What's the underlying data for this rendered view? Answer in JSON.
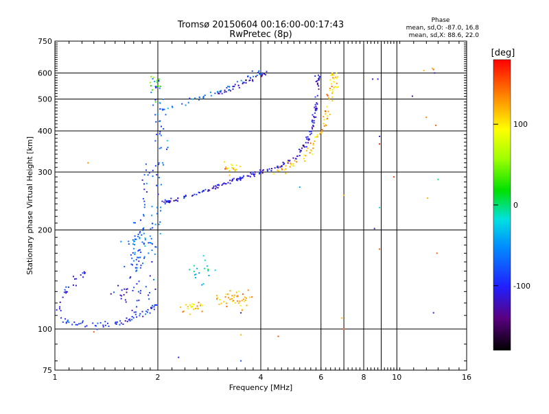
{
  "chart_data": {
    "type": "scatter",
    "title": "Tromsø 20150604 00:16:00-00:17:43",
    "subtitle": "RwPretec (8p)",
    "xlabel": "Frequency [MHz]",
    "ylabel": "Stationary phase Virtual Height [km]",
    "x_scale": "log",
    "y_scale": "log",
    "xlim": [
      1,
      16
    ],
    "ylim": [
      75,
      750
    ],
    "x_ticks": [
      {
        "value": 1,
        "label": "1"
      },
      {
        "value": 2,
        "label": "2"
      },
      {
        "value": 4,
        "label": "4"
      },
      {
        "value": 6,
        "label": "6"
      },
      {
        "value": 8,
        "label": "8"
      },
      {
        "value": 10,
        "label": "10"
      },
      {
        "value": 16,
        "label": "16"
      }
    ],
    "y_ticks": [
      {
        "value": 75,
        "label": "75"
      },
      {
        "value": 100,
        "label": "100"
      },
      {
        "value": 200,
        "label": "200"
      },
      {
        "value": 300,
        "label": "300"
      },
      {
        "value": 400,
        "label": "400"
      },
      {
        "value": 500,
        "label": "500"
      },
      {
        "value": 600,
        "label": "600"
      },
      {
        "value": 750,
        "label": "750"
      }
    ],
    "x_minor_grid": [
      7,
      9
    ],
    "grid": true,
    "phase_stats": {
      "header": "Phase",
      "line_o": "mean, sd,O: -87.0, 16.8",
      "line_x": "mean, sd,X:  88.6, 22.0"
    },
    "colorbar": {
      "label": "[deg]",
      "range": [
        -180,
        180
      ],
      "ticks": [
        {
          "value": 100,
          "label": "100"
        },
        {
          "value": 0,
          "label": "0"
        },
        {
          "value": -100,
          "label": "-100"
        }
      ],
      "colormap": "rainbow"
    },
    "traces": [
      {
        "kind": "curve",
        "phase": -95,
        "spread": 0.012,
        "count": 10,
        "points": [
          [
            1.05,
            107
          ],
          [
            1.15,
            104
          ],
          [
            1.3,
            102
          ],
          [
            1.45,
            103
          ],
          [
            1.6,
            106
          ],
          [
            1.75,
            110
          ],
          [
            1.9,
            114
          ],
          [
            2.0,
            120
          ]
        ]
      },
      {
        "kind": "curve",
        "phase": -100,
        "spread": 0.015,
        "count": 6,
        "points": [
          [
            1.02,
            112
          ],
          [
            1.05,
            125
          ],
          [
            1.1,
            135
          ],
          [
            1.18,
            145
          ],
          [
            1.23,
            150
          ]
        ]
      },
      {
        "kind": "curve",
        "phase": -90,
        "spread": 0.012,
        "count": 6,
        "points": [
          [
            1.72,
            112
          ],
          [
            1.75,
            130
          ],
          [
            1.78,
            160
          ],
          [
            1.8,
            200
          ],
          [
            1.82,
            240
          ],
          [
            1.83,
            280
          ],
          [
            1.86,
            320
          ]
        ]
      },
      {
        "kind": "curve",
        "phase": -80,
        "spread": 0.02,
        "count": 6,
        "points": [
          [
            1.9,
            115
          ],
          [
            1.92,
            140
          ],
          [
            1.95,
            180
          ],
          [
            1.97,
            240
          ],
          [
            1.98,
            300
          ],
          [
            1.99,
            380
          ],
          [
            2.0,
            450
          ],
          [
            1.97,
            520
          ],
          [
            1.95,
            570
          ]
        ]
      },
      {
        "kind": "curve",
        "phase": -60,
        "spread": 0.02,
        "count": 5,
        "points": [
          [
            2.0,
            180
          ],
          [
            2.02,
            220
          ],
          [
            2.05,
            300
          ],
          [
            2.05,
            380
          ],
          [
            2.03,
            440
          ],
          [
            2.05,
            540
          ]
        ]
      },
      {
        "kind": "curve",
        "phase": -108,
        "spread": 0.008,
        "count": 14,
        "points": [
          [
            2.0,
            240
          ],
          [
            2.2,
            245
          ],
          [
            2.5,
            255
          ],
          [
            2.8,
            265
          ],
          [
            3.1,
            275
          ],
          [
            3.4,
            285
          ],
          [
            3.7,
            293
          ],
          [
            4.0,
            300
          ],
          [
            4.5,
            310
          ],
          [
            5.0,
            330
          ],
          [
            5.4,
            360
          ],
          [
            5.6,
            400
          ],
          [
            5.75,
            450
          ],
          [
            5.85,
            520
          ],
          [
            5.9,
            600
          ]
        ]
      },
      {
        "kind": "curve",
        "phase": 115,
        "spread": 0.012,
        "count": 10,
        "points": [
          [
            4.3,
            300
          ],
          [
            4.8,
            310
          ],
          [
            5.3,
            330
          ],
          [
            5.7,
            360
          ],
          [
            6.0,
            400
          ],
          [
            6.2,
            440
          ],
          [
            6.35,
            490
          ],
          [
            6.45,
            540
          ],
          [
            6.5,
            600
          ]
        ]
      },
      {
        "kind": "curve",
        "phase": -70,
        "spread": 0.012,
        "count": 7,
        "points": [
          [
            2.0,
            460
          ],
          [
            2.3,
            480
          ],
          [
            2.6,
            500
          ],
          [
            2.9,
            520
          ],
          [
            3.2,
            545
          ],
          [
            3.5,
            565
          ],
          [
            3.8,
            590
          ],
          [
            4.0,
            610
          ]
        ]
      },
      {
        "kind": "curve",
        "phase": -125,
        "spread": 0.01,
        "count": 8,
        "points": [
          [
            3.0,
            520
          ],
          [
            3.3,
            540
          ],
          [
            3.6,
            560
          ],
          [
            3.9,
            580
          ],
          [
            4.1,
            600
          ]
        ]
      },
      {
        "kind": "cluster",
        "phase": 120,
        "center": [
          3.3,
          123
        ],
        "sx": 0.05,
        "sy": 0.03,
        "count": 45
      },
      {
        "kind": "cluster",
        "phase": 110,
        "center": [
          2.5,
          116
        ],
        "sx": 0.04,
        "sy": 0.02,
        "count": 25
      },
      {
        "kind": "cluster",
        "phase": 110,
        "center": [
          3.3,
          308
        ],
        "sx": 0.03,
        "sy": 0.02,
        "count": 18
      },
      {
        "kind": "cluster",
        "phase": -30,
        "center": [
          2.7,
          150
        ],
        "sx": 0.05,
        "sy": 0.05,
        "count": 18
      },
      {
        "kind": "cluster",
        "phase": -75,
        "center": [
          1.75,
          180
        ],
        "sx": 0.05,
        "sy": 0.1,
        "count": 60
      },
      {
        "kind": "cluster",
        "phase": 105,
        "center": [
          6.6,
          580
        ],
        "sx": 0.01,
        "sy": 0.03,
        "count": 14
      },
      {
        "kind": "cluster",
        "phase": -115,
        "center": [
          1.6,
          130
        ],
        "sx": 0.05,
        "sy": 0.05,
        "count": 20
      },
      {
        "kind": "cluster",
        "phase": 40,
        "center": [
          1.97,
          560
        ],
        "sx": 0.02,
        "sy": 0.05,
        "count": 12
      }
    ],
    "isolated_points": [
      {
        "x": 1.25,
        "y": 320,
        "phase": 130
      },
      {
        "x": 1.3,
        "y": 98,
        "phase": 150
      },
      {
        "x": 2.3,
        "y": 82,
        "phase": -100
      },
      {
        "x": 3.5,
        "y": 80,
        "phase": -80
      },
      {
        "x": 3.5,
        "y": 96,
        "phase": 120
      },
      {
        "x": 3.5,
        "y": 112,
        "phase": -130
      },
      {
        "x": 4.5,
        "y": 95,
        "phase": 150
      },
      {
        "x": 5.2,
        "y": 270,
        "phase": -40
      },
      {
        "x": 7.0,
        "y": 100,
        "phase": 140
      },
      {
        "x": 6.9,
        "y": 108,
        "phase": 110
      },
      {
        "x": 7.0,
        "y": 255,
        "phase": 120
      },
      {
        "x": 8.6,
        "y": 202,
        "phase": -120
      },
      {
        "x": 8.5,
        "y": 575,
        "phase": -110
      },
      {
        "x": 8.8,
        "y": 575,
        "phase": -100
      },
      {
        "x": 8.9,
        "y": 385,
        "phase": -110
      },
      {
        "x": 8.9,
        "y": 365,
        "phase": 170
      },
      {
        "x": 8.9,
        "y": 234,
        "phase": -20
      },
      {
        "x": 8.9,
        "y": 175,
        "phase": 150
      },
      {
        "x": 9.8,
        "y": 290,
        "phase": 160
      },
      {
        "x": 11.1,
        "y": 510,
        "phase": -130
      },
      {
        "x": 12.0,
        "y": 610,
        "phase": 120
      },
      {
        "x": 12.2,
        "y": 440,
        "phase": 140
      },
      {
        "x": 12.3,
        "y": 250,
        "phase": 120
      },
      {
        "x": 12.8,
        "y": 615,
        "phase": 150
      },
      {
        "x": 12.9,
        "y": 600,
        "phase": -110
      },
      {
        "x": 13.0,
        "y": 416,
        "phase": 150
      },
      {
        "x": 13.1,
        "y": 170,
        "phase": 150
      },
      {
        "x": 13.2,
        "y": 285,
        "phase": 0
      },
      {
        "x": 12.8,
        "y": 112,
        "phase": -110
      },
      {
        "x": 12.7,
        "y": 620,
        "phase": 120
      }
    ]
  }
}
